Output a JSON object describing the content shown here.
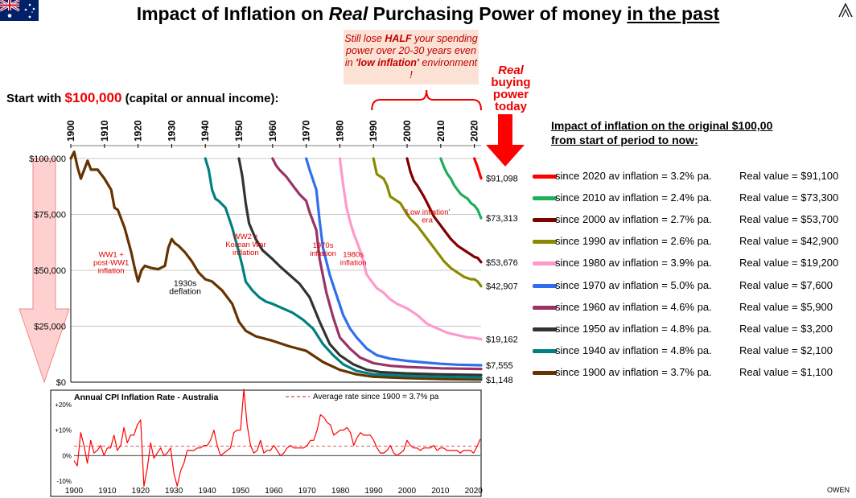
{
  "title": {
    "part1": "Impact of Inflation on ",
    "part2": "Real",
    "part3": " Purchasing Power of money ",
    "part4": "in the past"
  },
  "start": {
    "prefix": "Start with ",
    "amount": "$100,000",
    "suffix": " (capital or annual income):"
  },
  "callout": {
    "line1": "Still lose ",
    "half": "HALF",
    "line2": " your spending power over 20-30 years even in ",
    "low": "'low inflation'",
    "line3": " environment !"
  },
  "real_today": {
    "w1": "Real",
    "w2": "buying",
    "w3": "power",
    "w4": "today"
  },
  "legend_title": {
    "line1": "Impact of inflation on the original $100,00",
    "line2": "from start of period to now:"
  },
  "legend": [
    {
      "label": "since 2020 av inflation =  3.2% pa.",
      "value": "Real value =  $91,100",
      "color": "#ff0000"
    },
    {
      "label": "since 2010 av inflation =  2.4% pa.",
      "value": "Real value =  $73,300",
      "color": "#1fae5a"
    },
    {
      "label": "since 2000 av inflation =  2.7% pa.",
      "value": "Real value =  $53,700",
      "color": "#800000"
    },
    {
      "label": "since 1990 av inflation =  2.6% pa.",
      "value": "Real value =  $42,900",
      "color": "#8a8a00"
    },
    {
      "label": "since 1980 av inflation =  3.9% pa.",
      "value": "Real value =  $19,200",
      "color": "#ff99cc"
    },
    {
      "label": "since 1970 av inflation =  5.0% pa.",
      "value": "Real value =  $7,600",
      "color": "#2f6fef"
    },
    {
      "label": "since 1960 av inflation =  4.6% pa.",
      "value": "Real value =  $5,900",
      "color": "#993366"
    },
    {
      "label": "since 1950 av inflation =  4.8% pa.",
      "value": "Real value =  $3,200",
      "color": "#333333"
    },
    {
      "label": "since 1940 av inflation =  4.8% pa.",
      "value": "Real value =  $2,100",
      "color": "#008080"
    },
    {
      "label": "since 1900 av inflation =  3.7% pa.",
      "value": "Real value =  $1,100",
      "color": "#663300"
    }
  ],
  "owen": "OWEN",
  "icons": {
    "flag": "australia-flag-icon",
    "logo": "owen-logo-icon"
  },
  "chart_data": [
    {
      "type": "line",
      "xlim": [
        1900,
        2022
      ],
      "ylim": [
        0,
        100000
      ],
      "x_ticks": [
        "1900",
        "1910",
        "1920",
        "1930",
        "1940",
        "1950",
        "1960",
        "1970",
        "1980",
        "1990",
        "2000",
        "2010",
        "2020"
      ],
      "y_ticks": [
        "$0",
        "$25,000",
        "$50,000",
        "$75,000",
        "$100,000"
      ],
      "grid": true,
      "end_labels": [
        "$91,098",
        "$73,313",
        "$53,676",
        "$42,907",
        "$19,162",
        "$7,555",
        "$1,148"
      ],
      "annotations": [
        {
          "text": [
            "WW1 +",
            "post-WW1",
            "inflation"
          ],
          "color": "#e00000",
          "x": 1912,
          "y": 56000
        },
        {
          "text": [
            "1930s",
            "deflation"
          ],
          "color": "#000000",
          "x": 1934,
          "y": 43000
        },
        {
          "text": [
            "WW2 +",
            "Korean War",
            "inflation"
          ],
          "color": "#e00000",
          "x": 1952,
          "y": 64000
        },
        {
          "text": [
            "1970s",
            "inflation"
          ],
          "color": "#e00000",
          "x": 1975,
          "y": 60000
        },
        {
          "text": [
            "1980s",
            "inflation"
          ],
          "color": "#e00000",
          "x": 1984,
          "y": 56000
        },
        {
          "text": [
            "'Low inflation'",
            "era"
          ],
          "color": "#e00000",
          "x": 2006,
          "y": 75000
        }
      ],
      "series": [
        {
          "color": "#663300",
          "x": [
            1900,
            1901,
            1902,
            1903,
            1905,
            1906,
            1908,
            1910,
            1912,
            1913,
            1914,
            1916,
            1918,
            1919,
            1920,
            1921,
            1922,
            1924,
            1926,
            1928,
            1929,
            1930,
            1931,
            1932,
            1934,
            1936,
            1938,
            1940,
            1942,
            1945,
            1948,
            1950,
            1952,
            1955,
            1960,
            1965,
            1970,
            1975,
            1980,
            1985,
            1990,
            2000,
            2010,
            2022
          ],
          "y": [
            100000,
            103000,
            96000,
            91000,
            99000,
            95000,
            95000,
            91000,
            86000,
            78000,
            77000,
            69000,
            58000,
            51000,
            45000,
            50000,
            52000,
            51000,
            50500,
            52000,
            60000,
            64000,
            62000,
            61000,
            58000,
            54000,
            49000,
            46000,
            45000,
            41000,
            35000,
            27000,
            23000,
            20500,
            18500,
            16000,
            14000,
            9000,
            5500,
            3500,
            2400,
            1800,
            1400,
            1148
          ]
        },
        {
          "color": "#008080",
          "x": [
            1940,
            1941,
            1942,
            1943,
            1944,
            1946,
            1948,
            1950,
            1951,
            1952,
            1954,
            1956,
            1958,
            1960,
            1963,
            1966,
            1969,
            1972,
            1975,
            1978,
            1981,
            1985,
            1990,
            2000,
            2010,
            2022
          ],
          "y": [
            100000,
            95000,
            86000,
            82000,
            81000,
            78000,
            69000,
            58000,
            52000,
            45000,
            41000,
            38000,
            36000,
            35000,
            33000,
            31000,
            28000,
            24000,
            17000,
            12000,
            8000,
            5000,
            3500,
            2800,
            2400,
            2100
          ]
        },
        {
          "color": "#333333",
          "x": [
            1950,
            1951,
            1952,
            1953,
            1955,
            1957,
            1960,
            1962,
            1965,
            1968,
            1971,
            1974,
            1977,
            1980,
            1984,
            1988,
            1992,
            2000,
            2010,
            2022
          ],
          "y": [
            100000,
            92000,
            80000,
            71000,
            64000,
            59000,
            55000,
            52000,
            48000,
            44000,
            38000,
            27000,
            17000,
            12000,
            8000,
            5500,
            4500,
            3900,
            3500,
            3200
          ]
        },
        {
          "color": "#993366",
          "x": [
            1960,
            1961,
            1962,
            1964,
            1966,
            1968,
            1970,
            1971,
            1973,
            1974,
            1976,
            1978,
            1980,
            1983,
            1986,
            1990,
            1995,
            2000,
            2010,
            2022
          ],
          "y": [
            100000,
            97000,
            95000,
            92000,
            88000,
            84000,
            81000,
            76000,
            68000,
            55000,
            40000,
            29000,
            20000,
            15000,
            11000,
            8500,
            7300,
            6800,
            6200,
            5900
          ]
        },
        {
          "color": "#2f6fef",
          "x": [
            1970,
            1971,
            1973,
            1974,
            1975,
            1977,
            1979,
            1981,
            1983,
            1985,
            1988,
            1991,
            1995,
            2000,
            2005,
            2010,
            2015,
            2022
          ],
          "y": [
            100000,
            95000,
            86000,
            72000,
            60000,
            48000,
            39000,
            30000,
            24000,
            20000,
            15000,
            12000,
            10500,
            9500,
            8800,
            8200,
            7800,
            7555
          ]
        },
        {
          "color": "#ff99cc",
          "x": [
            1980,
            1981,
            1982,
            1983,
            1984,
            1986,
            1987,
            1988,
            1990,
            1991,
            1993,
            1995,
            1997,
            2000,
            2003,
            2006,
            2009,
            2012,
            2015,
            2018,
            2020,
            2022
          ],
          "y": [
            100000,
            88000,
            78000,
            72000,
            67000,
            59000,
            54000,
            48000,
            44000,
            42000,
            40000,
            37000,
            35000,
            33000,
            30000,
            26000,
            24000,
            22000,
            21000,
            20000,
            19800,
            19162
          ]
        },
        {
          "color": "#8a8a00",
          "x": [
            1990,
            1991,
            1992,
            1993,
            1994,
            1995,
            1996,
            1998,
            2000,
            2001,
            2003,
            2005,
            2007,
            2009,
            2011,
            2013,
            2015,
            2017,
            2019,
            2020,
            2021,
            2022
          ],
          "y": [
            100000,
            93000,
            92000,
            91000,
            88000,
            83000,
            82000,
            80000,
            75000,
            73000,
            70000,
            66000,
            62000,
            58000,
            54000,
            51000,
            49000,
            47000,
            46000,
            46000,
            45000,
            42907
          ]
        },
        {
          "color": "#800000",
          "x": [
            2000,
            2001,
            2002,
            2003,
            2005,
            2007,
            2008,
            2009,
            2011,
            2013,
            2015,
            2017,
            2019,
            2020,
            2021,
            2022
          ],
          "y": [
            100000,
            94000,
            90000,
            88000,
            83000,
            77000,
            74000,
            72000,
            68000,
            64000,
            61000,
            59000,
            57000,
            56000,
            55500,
            53676
          ]
        },
        {
          "color": "#1fae5a",
          "x": [
            2010,
            2011,
            2012,
            2013,
            2014,
            2015,
            2016,
            2017,
            2018,
            2019,
            2020,
            2021,
            2022
          ],
          "y": [
            100000,
            96000,
            93000,
            91000,
            88000,
            86000,
            84000,
            83000,
            82000,
            80000,
            79000,
            77000,
            73313
          ]
        },
        {
          "color": "#ff0000",
          "x": [
            2020,
            2021,
            2022
          ],
          "y": [
            100000,
            96000,
            91098
          ]
        }
      ]
    },
    {
      "type": "line",
      "title": "Annual CPI Inflation Rate - Australia",
      "xlim": [
        1900,
        2022
      ],
      "ylim": [
        -10,
        25
      ],
      "x_ticks": [
        "1900",
        "1910",
        "1920",
        "1930",
        "1940",
        "1950",
        "1960",
        "1970",
        "1980",
        "1990",
        "2000",
        "2010",
        "2020"
      ],
      "y_ticks": [
        "-10%",
        "0%",
        "+10%",
        "+20%"
      ],
      "average": {
        "label": "Average rate since 1900  =  3.7% pa",
        "value": 3.7
      },
      "series": [
        {
          "color": "#ff0000",
          "x": [
            1900,
            1901,
            1902,
            1903,
            1904,
            1905,
            1906,
            1907,
            1908,
            1909,
            1910,
            1911,
            1912,
            1913,
            1914,
            1915,
            1916,
            1917,
            1918,
            1919,
            1920,
            1921,
            1922,
            1923,
            1924,
            1925,
            1926,
            1927,
            1928,
            1929,
            1930,
            1931,
            1932,
            1933,
            1934,
            1935,
            1936,
            1937,
            1938,
            1939,
            1940,
            1941,
            1942,
            1943,
            1944,
            1945,
            1946,
            1947,
            1948,
            1949,
            1950,
            1951,
            1952,
            1953,
            1954,
            1955,
            1956,
            1957,
            1958,
            1959,
            1960,
            1961,
            1962,
            1963,
            1964,
            1965,
            1966,
            1967,
            1968,
            1969,
            1970,
            1971,
            1972,
            1973,
            1974,
            1975,
            1976,
            1977,
            1978,
            1979,
            1980,
            1981,
            1982,
            1983,
            1984,
            1985,
            1986,
            1987,
            1988,
            1989,
            1990,
            1991,
            1992,
            1993,
            1994,
            1995,
            1996,
            1997,
            1998,
            1999,
            2000,
            2001,
            2002,
            2003,
            2004,
            2005,
            2006,
            2007,
            2008,
            2009,
            2010,
            2011,
            2012,
            2013,
            2014,
            2015,
            2016,
            2017,
            2018,
            2019,
            2020,
            2021,
            2022
          ],
          "y": [
            -2,
            -4,
            9,
            4,
            -3,
            6,
            1,
            2,
            4,
            0,
            3,
            3,
            8,
            2,
            4,
            11,
            5,
            8,
            8,
            12,
            14,
            -12,
            -5,
            5,
            -1,
            1,
            3,
            0,
            1,
            3,
            -7,
            -12,
            -6,
            -3,
            2,
            2,
            2,
            3,
            3,
            4,
            4,
            6,
            10,
            4,
            0,
            1,
            2,
            3,
            9,
            10,
            10,
            26,
            12,
            4,
            1,
            2,
            6,
            1,
            2,
            2,
            4,
            2,
            0,
            1,
            3,
            4,
            3,
            3,
            3,
            3,
            4,
            6,
            6,
            10,
            16,
            15,
            13,
            12,
            8,
            9,
            10,
            10,
            11,
            9,
            4,
            7,
            9,
            8,
            8,
            8,
            6,
            3,
            1,
            1,
            2,
            4,
            1,
            0,
            1,
            2,
            6,
            4,
            3,
            3,
            2,
            3,
            3,
            3,
            4,
            2,
            3,
            3,
            2,
            2,
            2,
            2,
            1,
            2,
            2,
            2,
            1,
            3.5,
            6.5
          ]
        }
      ]
    }
  ]
}
